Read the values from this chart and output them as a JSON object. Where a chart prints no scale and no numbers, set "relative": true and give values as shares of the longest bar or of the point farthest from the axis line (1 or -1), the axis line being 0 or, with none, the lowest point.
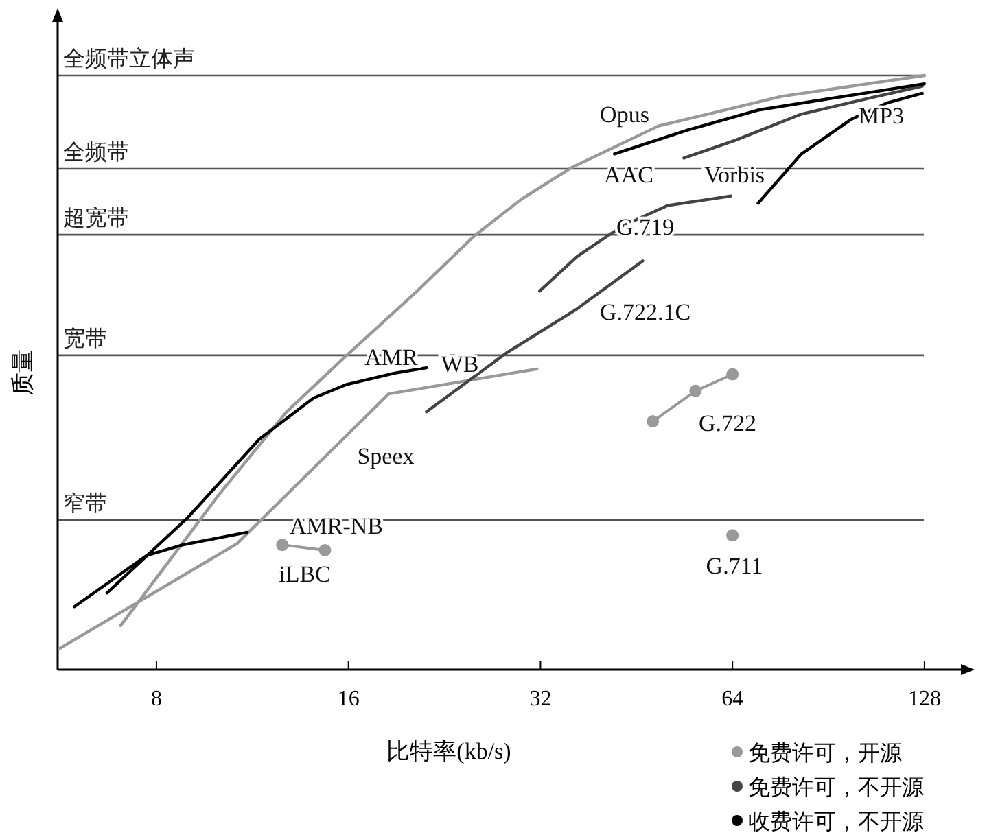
{
  "chart_data": {
    "type": "line",
    "relative": true,
    "log": "x",
    "xlabel": "比特率(kb/s)",
    "ylabel": "质量",
    "xlim": [
      5.6,
      146
    ],
    "xticks": [
      8,
      16,
      32,
      64,
      128
    ],
    "legend": "bottom right",
    "ref_lines": [
      {
        "axis": "y",
        "value": 1.0,
        "label": "全频带立体声"
      },
      {
        "axis": "y",
        "value": 0.843,
        "label": "全频带"
      },
      {
        "axis": "y",
        "value": 0.732,
        "label": "超宽带"
      },
      {
        "axis": "y",
        "value": 0.529,
        "label": "宽带"
      },
      {
        "axis": "y",
        "value": 0.252,
        "label": "窄带"
      }
    ],
    "series": [
      {
        "name": "免费许可，开源",
        "color": "#999999",
        "x": [
          7.03,
          10.05,
          12.8,
          15.9,
          20.4,
          25.2,
          29.9,
          35.8,
          49,
          76.5,
          128
        ],
        "values": [
          0.074,
          0.296,
          0.434,
          0.529,
          0.635,
          0.73,
          0.792,
          0.845,
          0.915,
          0.965,
          1.0
        ]
      },
      {
        "color": "#999999",
        "x": [
          5.63,
          10.7,
          18.5,
          31.6
        ],
        "values": [
          0.035,
          0.212,
          0.464,
          0.506
        ]
      },
      {
        "color": "#999999",
        "marker": "circle",
        "x": [
          12.6,
          14.7
        ],
        "values": [
          0.21,
          0.201
        ]
      },
      {
        "color": "#999999",
        "marker": "circle",
        "x": [
          48,
          56,
          64
        ],
        "values": [
          0.418,
          0.469,
          0.497
        ]
      },
      {
        "color": "#999999",
        "marker": "circle",
        "x": [
          64
        ],
        "values": [
          0.226
        ]
      },
      {
        "name": "免费许可，不开源",
        "color": "#444444",
        "x": [
          21.2,
          28.3,
          36.5,
          46.3
        ],
        "values": [
          0.434,
          0.533,
          0.607,
          0.688
        ]
      },
      {
        "color": "#444444",
        "x": [
          31.9,
          36.5,
          42.9,
          50.6,
          63.6
        ],
        "values": [
          0.637,
          0.695,
          0.746,
          0.781,
          0.797
        ]
      },
      {
        "color": "#444444",
        "x": [
          53.7,
          64.7,
          82.1,
          104,
          127
        ],
        "values": [
          0.861,
          0.891,
          0.935,
          0.961,
          0.982
        ]
      },
      {
        "name": "收费许可，不开源",
        "color": "#000000",
        "x": [
          6.69,
          8.96,
          11.6,
          14.1,
          15.9,
          18.9,
          21.2
        ],
        "values": [
          0.129,
          0.256,
          0.388,
          0.457,
          0.48,
          0.499,
          0.508
        ]
      },
      {
        "color": "#000000",
        "x": [
          5.95,
          7.72,
          8.8,
          11.1
        ],
        "values": [
          0.106,
          0.192,
          0.21,
          0.231
        ]
      },
      {
        "color": "#000000",
        "x": [
          41.8,
          54.4,
          70.4,
          90.9,
          128
        ],
        "values": [
          0.868,
          0.908,
          0.942,
          0.961,
          0.986
        ]
      },
      {
        "color": "#000000",
        "x": [
          70.2,
          82.1,
          98.2,
          112,
          127
        ],
        "values": [
          0.785,
          0.868,
          0.926,
          0.954,
          0.97
        ]
      }
    ],
    "annotations": [
      "Opus",
      "AAC",
      "Vorbis",
      "MP3",
      "G.719",
      "G.722.1C",
      "AMR",
      "WB",
      "Speex",
      "AMR-NB",
      "iLBC",
      "G.722",
      "G.711"
    ]
  }
}
